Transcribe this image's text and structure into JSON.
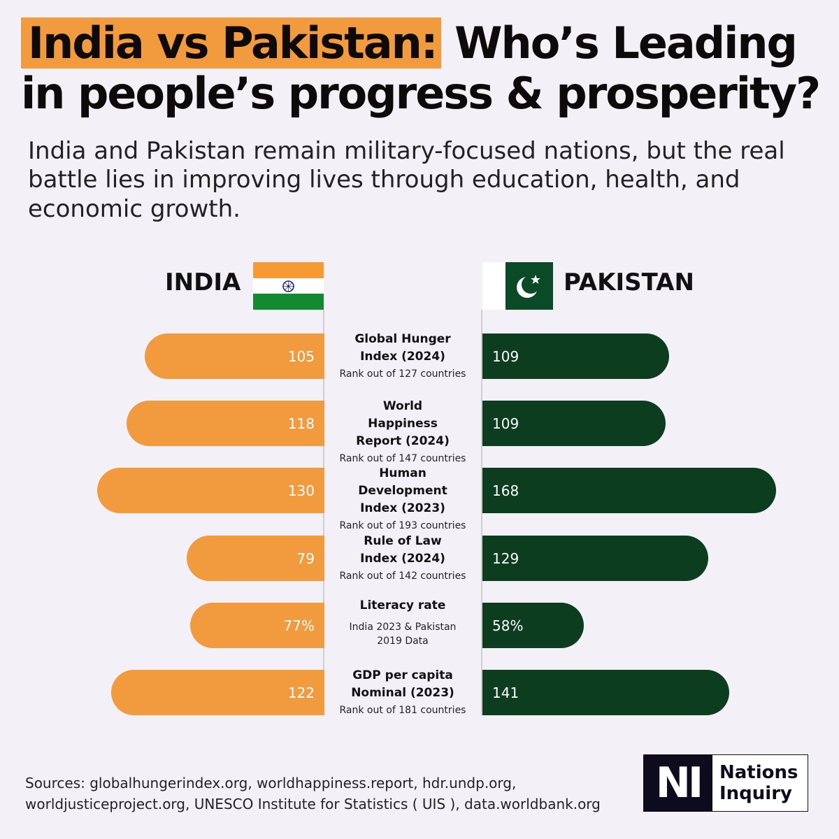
{
  "header": {
    "title_highlight": "India vs Pakistan:",
    "title_rest": "Who’s Leading in people’s progress & prosperity?",
    "subtitle": "India and Pakistan remain military-focused nations, but the real battle lies in improving lives through education, health, and economic growth."
  },
  "colors": {
    "india": "#f19a3e",
    "pakistan": "#0b3d1e",
    "background": "#f3f0f8"
  },
  "chart_data": {
    "type": "bar",
    "orientation": "diverging-horizontal",
    "series": [
      {
        "name": "INDIA",
        "values": [
          105,
          118,
          130,
          79,
          77,
          122
        ],
        "labels": [
          "105",
          "118",
          "130",
          "79",
          "77%",
          "122"
        ],
        "flag_icon": "india-flag-icon"
      },
      {
        "name": "PAKISTAN",
        "values": [
          109,
          109,
          168,
          129,
          58,
          141
        ],
        "labels": [
          "109",
          "109",
          "168",
          "129",
          "58%",
          "141"
        ],
        "flag_icon": "pakistan-flag-icon"
      }
    ],
    "categories": [
      {
        "name": "Global Hunger Index (2024)",
        "note": "Rank out of 127 countries"
      },
      {
        "name": "World Happiness Report (2024)",
        "note": "Rank out of 147 countries"
      },
      {
        "name": "Human Development Index (2023)",
        "note": "Rank out of 193 countries"
      },
      {
        "name": "Rule of Law Index (2024)",
        "note": "Rank out of 142 countries"
      },
      {
        "name": "Literacy rate",
        "note": "India 2023 & Pakistan 2019 Data"
      },
      {
        "name": "GDP per capita Nominal (2023)",
        "note": "Rank out of 181 countries"
      }
    ]
  },
  "footer": {
    "sources": "Sources: globalhungerindex.org, worldhappiness.report, hdr.undp.org, worldjusticeproject.org, UNESCO Institute for Statistics ( UIS ), data.worldbank.org",
    "logo_mark": "NI",
    "logo_line1": "Nations",
    "logo_line2": "Inquiry"
  }
}
